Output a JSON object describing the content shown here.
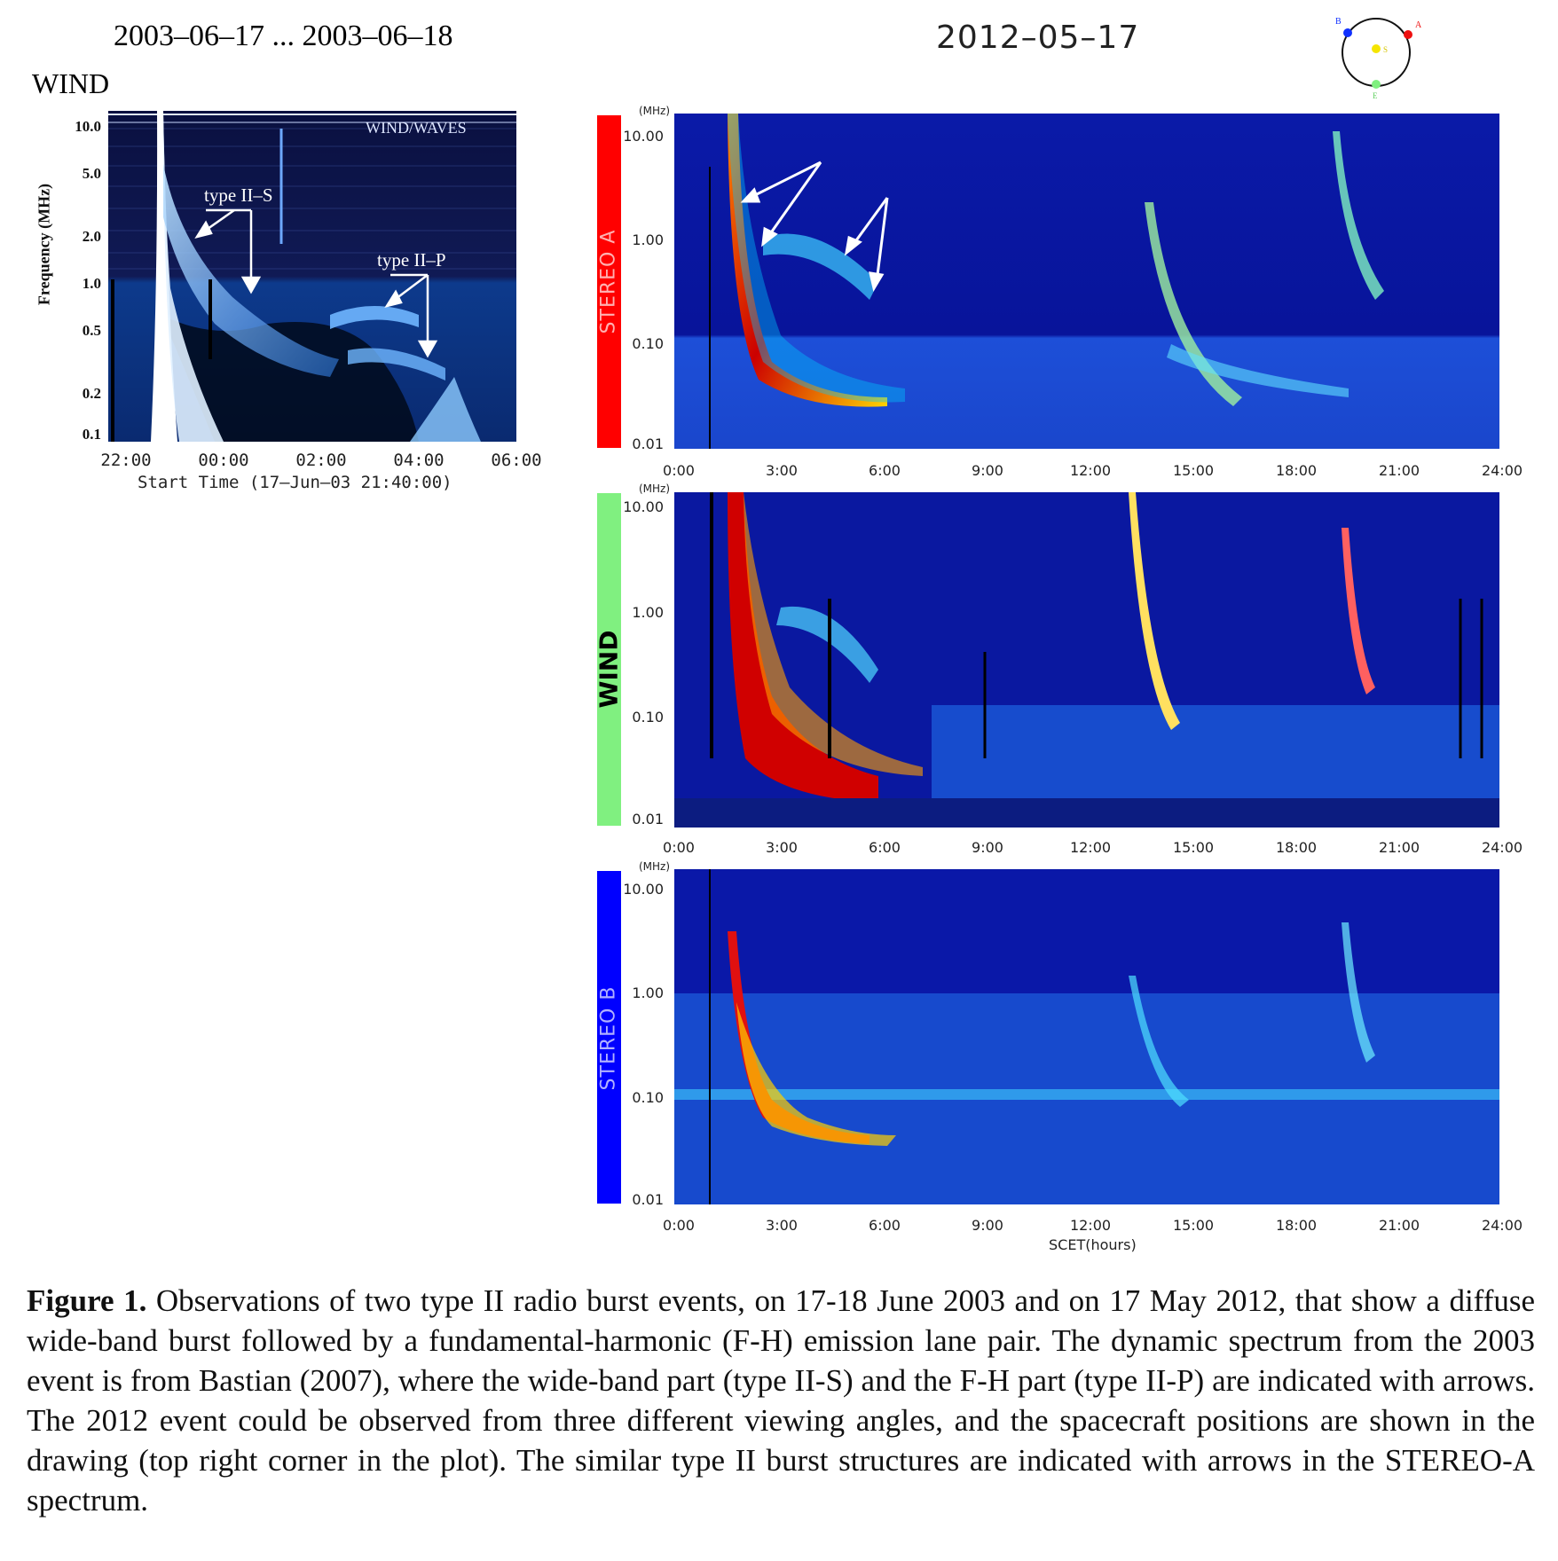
{
  "left_panel": {
    "date_range": "2003–06–17 ... 2003–06–18",
    "instrument": "WIND",
    "plot_title": "WIND/WAVES",
    "ylabel": "Frequency (MHz)",
    "yticks": [
      "10.0",
      "5.0",
      "2.0",
      "1.0",
      "0.5",
      "0.2",
      "0.1"
    ],
    "xticks": [
      "22:00",
      "00:00",
      "02:00",
      "04:00",
      "06:00"
    ],
    "xlabel": "Start Time (17–Jun–03 21:40:00)",
    "annotation_s": "type II–S",
    "annotation_p": "type II–P"
  },
  "right_panel": {
    "date": "2012–05–17",
    "orbit_labels": {
      "b": "B",
      "a": "A",
      "e": "E",
      "s": "S"
    },
    "unit": "(MHz)",
    "yticks": [
      "10.00",
      "1.00",
      "0.10",
      "0.01"
    ],
    "xticks": [
      "0:00",
      "3:00",
      "6:00",
      "9:00",
      "12:00",
      "15:00",
      "18:00",
      "21:00",
      "24:00"
    ],
    "xlabel": "SCET(hours)",
    "panels": [
      {
        "label": "STEREO A",
        "color": "#ff0000"
      },
      {
        "label": "WIND",
        "color": "#80f080"
      },
      {
        "label": "STEREO B",
        "color": "#0000ff"
      }
    ]
  },
  "caption": {
    "label": "Figure 1.",
    "text": "Observations of two type II radio burst events, on 17-18 June 2003 and on 17 May 2012, that show a diffuse wide-band burst followed by a fundamental-harmonic (F-H) emission lane pair. The dynamic spectrum from the 2003 event is from Bastian (2007), where the wide-band part (type II-S) and the F-H part (type II-P) are indicated with arrows. The 2012 event could be observed from three different viewing angles, and the spacecraft positions are shown in the drawing (top right corner in the plot). The similar type II burst structures are indicated with arrows in the STEREO-A spectrum."
  }
}
